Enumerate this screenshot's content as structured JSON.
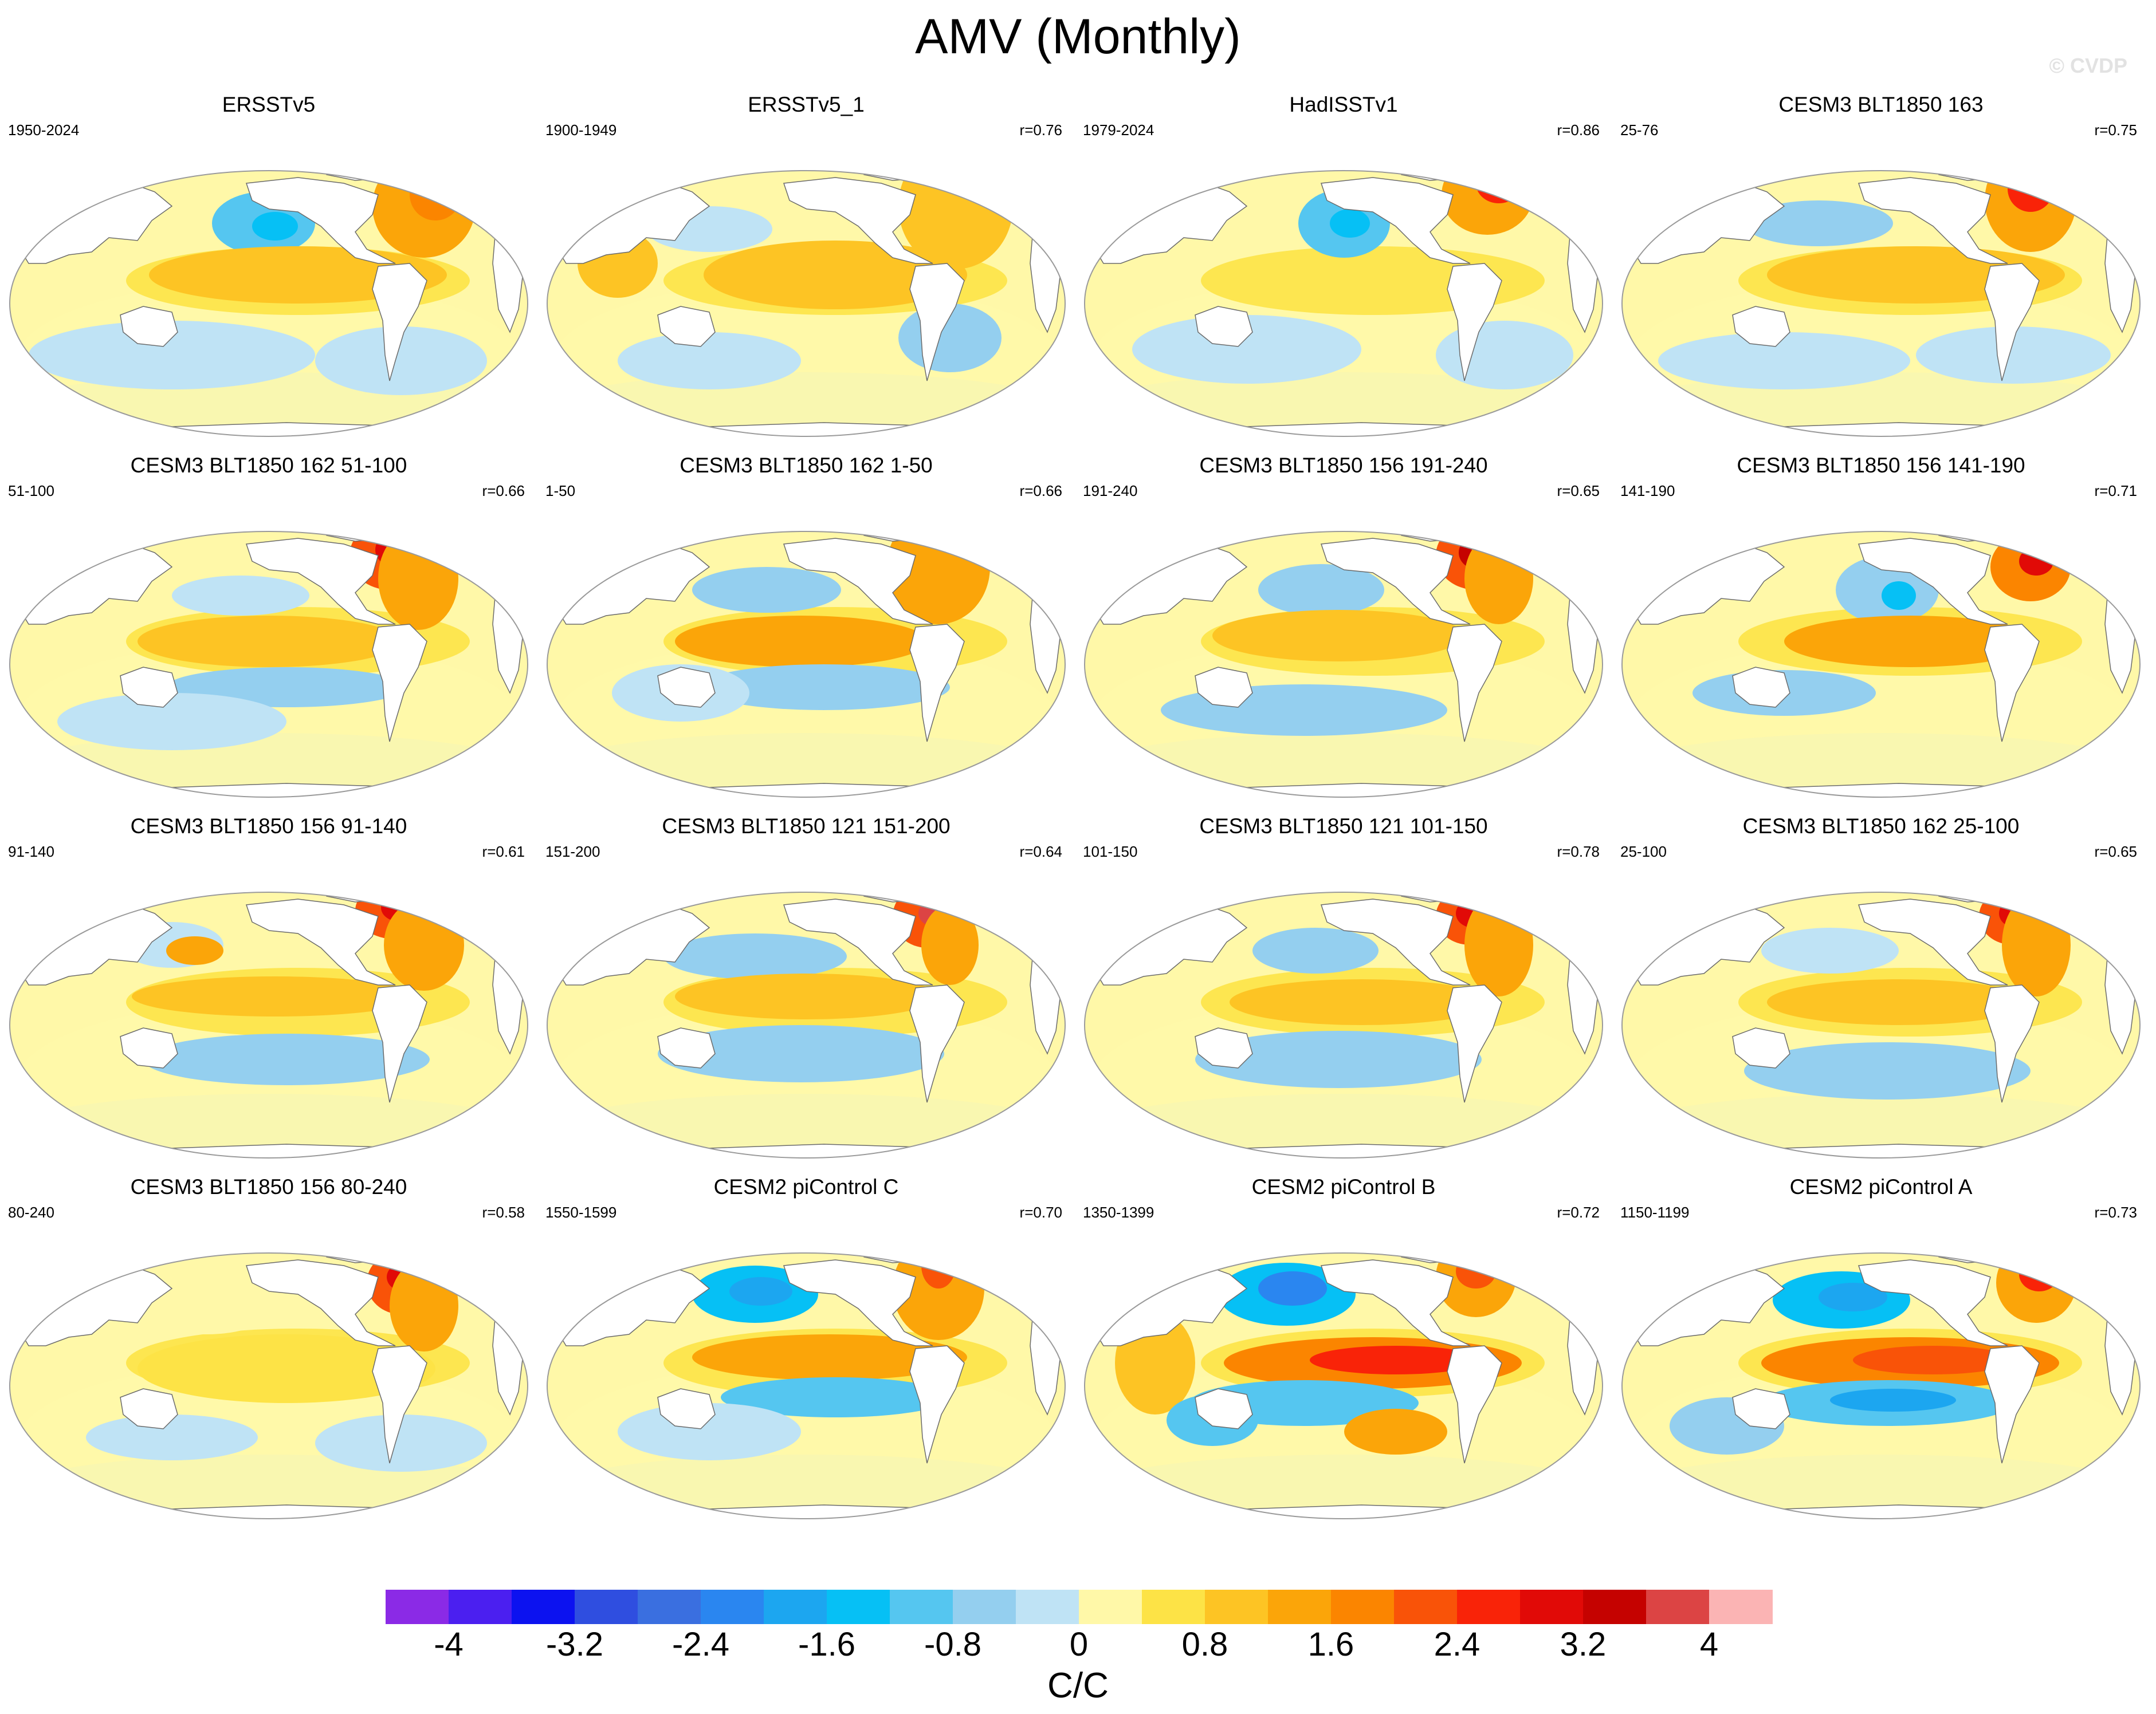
{
  "title": "AMV (Monthly)",
  "watermark": "© CVDP",
  "chart_data": {
    "type": "heatmap",
    "description_type": "multi-panel global map regression patterns",
    "panels": [
      {
        "title": "ERSSTv5",
        "period": "1950-2024",
        "r": ""
      },
      {
        "title": "ERSSTv5_1",
        "period": "1900-1949",
        "r": "r=0.76"
      },
      {
        "title": "HadISSTv1",
        "period": "1979-2024",
        "r": "r=0.86"
      },
      {
        "title": "CESM3 BLT1850 163",
        "period": "25-76",
        "r": "r=0.75"
      },
      {
        "title": "CESM3 BLT1850 162 51-100",
        "period": "51-100",
        "r": "r=0.66"
      },
      {
        "title": "CESM3 BLT1850 162 1-50",
        "period": "1-50",
        "r": "r=0.66"
      },
      {
        "title": "CESM3 BLT1850 156 191-240",
        "period": "191-240",
        "r": "r=0.65"
      },
      {
        "title": "CESM3 BLT1850 156 141-190",
        "period": "141-190",
        "r": "r=0.71"
      },
      {
        "title": "CESM3 BLT1850 156 91-140",
        "period": "91-140",
        "r": "r=0.61"
      },
      {
        "title": "CESM3 BLT1850 121 151-200",
        "period": "151-200",
        "r": "r=0.64"
      },
      {
        "title": "CESM3 BLT1850 121 101-150",
        "period": "101-150",
        "r": "r=0.78"
      },
      {
        "title": "CESM3 BLT1850 162 25-100",
        "period": "25-100",
        "r": "r=0.65"
      },
      {
        "title": "CESM3 BLT1850 156 80-240",
        "period": "80-240",
        "r": "r=0.58"
      },
      {
        "title": "CESM2 piControl C",
        "period": "1550-1599",
        "r": "r=0.70"
      },
      {
        "title": "CESM2 piControl B",
        "period": "1350-1399",
        "r": "r=0.72"
      },
      {
        "title": "CESM2 piControl A",
        "period": "1150-1199",
        "r": "r=0.73"
      }
    ],
    "colorbar": {
      "min": -4.4,
      "max": 4.4,
      "step": 0.4,
      "tick_labels": [
        "-4",
        "-3.2",
        "-2.4",
        "-1.6",
        "-0.8",
        "0",
        "0.8",
        "1.6",
        "2.4",
        "3.2",
        "4"
      ],
      "tick_values": [
        -4,
        -3.2,
        -2.4,
        -1.6,
        -0.8,
        0,
        0.8,
        1.6,
        2.4,
        3.2,
        4
      ],
      "label": "C/C",
      "colors": [
        "#8b2ae6",
        "#4b1ff0",
        "#0c12f0",
        "#2f4ee0",
        "#3a6fe0",
        "#2a86f0",
        "#1ca6f0",
        "#06c0f5",
        "#55c6f0",
        "#94cfef",
        "#bfe3f5",
        "#fff8a8",
        "#fde346",
        "#fdc424",
        "#fba509",
        "#fb8500",
        "#f95308",
        "#f92308",
        "#e10a07",
        "#c50200",
        "#dc4444",
        "#fbb4b4"
      ]
    }
  }
}
